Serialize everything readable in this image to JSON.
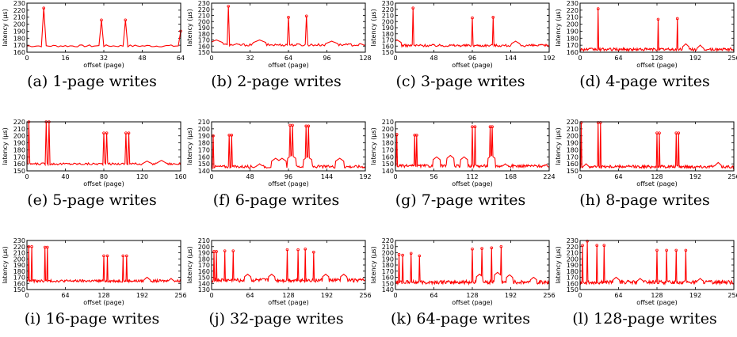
{
  "chart_data": [
    {
      "type": "line",
      "caption": "(a) 1-page writes",
      "xlabel": "offset (page)",
      "ylabel": "latency (µs)",
      "xlim": [
        0,
        64
      ],
      "xticks": [
        0,
        16,
        32,
        48,
        64
      ],
      "ylim": [
        160,
        230
      ],
      "yticks": [
        160,
        170,
        180,
        190,
        200,
        210,
        220,
        230
      ],
      "color": "#ff0000",
      "base": 169,
      "noise": 1.5,
      "n": 64,
      "bumps": [
        [
          4,
          162
        ],
        [
          10,
          168
        ],
        [
          20,
          164
        ],
        [
          58,
          165
        ]
      ],
      "spikes": [
        [
          7,
          223
        ],
        [
          31,
          206
        ],
        [
          41,
          206
        ],
        [
          64,
          190
        ]
      ]
    },
    {
      "type": "line",
      "caption": "(b) 2-page writes",
      "xlabel": "offset (page)",
      "ylabel": "latency (µs)",
      "xlim": [
        0,
        128
      ],
      "xticks": [
        0,
        32,
        64,
        96,
        128
      ],
      "ylim": [
        150,
        230
      ],
      "yticks": [
        150,
        160,
        170,
        180,
        190,
        200,
        210,
        220,
        230
      ],
      "color": "#ff0000",
      "base": 162,
      "noise": 2,
      "n": 128,
      "bumps": [
        [
          4,
          170
        ],
        [
          40,
          170
        ],
        [
          100,
          168
        ]
      ],
      "spikes": [
        [
          14,
          225
        ],
        [
          64,
          207
        ],
        [
          79,
          209
        ]
      ]
    },
    {
      "type": "line",
      "caption": "(c) 3-page writes",
      "xlabel": "offset (page)",
      "ylabel": "latency (µs)",
      "xlim": [
        0,
        192
      ],
      "xticks": [
        0,
        48,
        96,
        144,
        192
      ],
      "ylim": [
        150,
        230
      ],
      "yticks": [
        150,
        160,
        170,
        180,
        190,
        200,
        210,
        220,
        230
      ],
      "color": "#ff0000",
      "base": 161,
      "noise": 2,
      "n": 192,
      "bumps": [
        [
          2,
          170
        ],
        [
          150,
          168
        ]
      ],
      "spikes": [
        [
          22,
          222
        ],
        [
          96,
          206
        ],
        [
          122,
          207
        ]
      ]
    },
    {
      "type": "line",
      "caption": "(d) 4-page writes",
      "xlabel": "offset (page)",
      "ylabel": "latency (µs)",
      "xlim": [
        0,
        256
      ],
      "xticks": [
        0,
        64,
        128,
        192,
        256
      ],
      "ylim": [
        160,
        230
      ],
      "yticks": [
        160,
        170,
        180,
        190,
        200,
        210,
        220,
        230
      ],
      "color": "#ff0000",
      "base": 164,
      "noise": 2,
      "n": 256,
      "bumps": [
        [
          176,
          172
        ],
        [
          200,
          170
        ]
      ],
      "spikes": [
        [
          30,
          222
        ],
        [
          130,
          207
        ],
        [
          162,
          208
        ]
      ]
    },
    {
      "type": "line",
      "caption": "(e) 5-page writes",
      "xlabel": "offset (page)",
      "ylabel": "latency (µs)",
      "xlim": [
        0,
        160
      ],
      "xticks": [
        0,
        40,
        80,
        120,
        160
      ],
      "ylim": [
        150,
        220
      ],
      "yticks": [
        150,
        160,
        170,
        180,
        190,
        200,
        210,
        220
      ],
      "color": "#ff0000",
      "base": 160,
      "noise": 1.5,
      "n": 160,
      "bumps": [
        [
          125,
          164
        ],
        [
          140,
          165
        ]
      ],
      "spikes": [
        [
          2,
          220
        ],
        [
          20,
          220
        ],
        [
          23,
          220
        ],
        [
          80,
          204
        ],
        [
          83,
          204
        ],
        [
          103,
          204
        ],
        [
          106,
          204
        ]
      ]
    },
    {
      "type": "line",
      "caption": "(f) 6-page writes",
      "xlabel": "offset (page)",
      "ylabel": "latency (µs)",
      "xlim": [
        0,
        192
      ],
      "xticks": [
        0,
        48,
        96,
        144,
        192
      ],
      "ylim": [
        140,
        210
      ],
      "yticks": [
        140,
        150,
        160,
        170,
        180,
        190,
        200,
        210
      ],
      "color": "#ff0000",
      "base": 146,
      "noise": 2,
      "n": 192,
      "bumps": [
        [
          60,
          150
        ],
        [
          80,
          158
        ],
        [
          88,
          158
        ],
        [
          100,
          162
        ],
        [
          120,
          160
        ],
        [
          160,
          158
        ]
      ],
      "spikes": [
        [
          2,
          190
        ],
        [
          22,
          191
        ],
        [
          25,
          191
        ],
        [
          98,
          205
        ],
        [
          101,
          205
        ],
        [
          118,
          204
        ],
        [
          121,
          204
        ]
      ]
    },
    {
      "type": "line",
      "caption": "(g) 7-page writes",
      "xlabel": "offset (page)",
      "ylabel": "latency (µs)",
      "xlim": [
        0,
        224
      ],
      "xticks": [
        0,
        56,
        112,
        168,
        224
      ],
      "ylim": [
        140,
        210
      ],
      "yticks": [
        140,
        150,
        160,
        170,
        180,
        190,
        200,
        210
      ],
      "color": "#ff0000",
      "base": 147,
      "noise": 2,
      "n": 224,
      "bumps": [
        [
          60,
          160
        ],
        [
          80,
          162
        ],
        [
          100,
          160
        ],
        [
          140,
          162
        ],
        [
          160,
          150
        ]
      ],
      "spikes": [
        [
          2,
          192
        ],
        [
          28,
          191
        ],
        [
          31,
          191
        ],
        [
          112,
          203
        ],
        [
          116,
          203
        ],
        [
          138,
          203
        ],
        [
          141,
          203
        ]
      ]
    },
    {
      "type": "line",
      "caption": "(h) 8-page writes",
      "xlabel": "offset (page)",
      "ylabel": "latency (µs)",
      "xlim": [
        0,
        256
      ],
      "xticks": [
        0,
        64,
        128,
        192,
        256
      ],
      "ylim": [
        150,
        220
      ],
      "yticks": [
        150,
        160,
        170,
        180,
        190,
        200,
        210,
        220
      ],
      "color": "#ff0000",
      "base": 156,
      "noise": 2,
      "n": 256,
      "bumps": [
        [
          10,
          160
        ],
        [
          230,
          162
        ]
      ],
      "spikes": [
        [
          2,
          219
        ],
        [
          30,
          219
        ],
        [
          34,
          219
        ],
        [
          128,
          204
        ],
        [
          132,
          204
        ],
        [
          160,
          204
        ],
        [
          164,
          204
        ]
      ]
    },
    {
      "type": "line",
      "caption": "(i) 16-page writes",
      "xlabel": "offset (page)",
      "ylabel": "latency (µs)",
      "xlim": [
        0,
        256
      ],
      "xticks": [
        0,
        64,
        128,
        192,
        256
      ],
      "ylim": [
        150,
        230
      ],
      "yticks": [
        150,
        160,
        170,
        180,
        190,
        200,
        210,
        220,
        230
      ],
      "color": "#ff0000",
      "base": 164,
      "noise": 2,
      "n": 256,
      "bumps": [
        [
          200,
          170
        ],
        [
          240,
          168
        ]
      ],
      "spikes": [
        [
          3,
          220
        ],
        [
          8,
          220
        ],
        [
          30,
          219
        ],
        [
          34,
          219
        ],
        [
          128,
          205
        ],
        [
          134,
          205
        ],
        [
          160,
          205
        ],
        [
          166,
          205
        ]
      ]
    },
    {
      "type": "line",
      "caption": "(j) 32-page writes",
      "xlabel": "offset (page)",
      "ylabel": "latency (µs)",
      "xlim": [
        0,
        256
      ],
      "xticks": [
        0,
        64,
        128,
        192,
        256
      ],
      "ylim": [
        130,
        210
      ],
      "yticks": [
        130,
        140,
        150,
        160,
        170,
        180,
        190,
        200,
        210
      ],
      "color": "#ff0000",
      "base": 145,
      "noise": 3,
      "n": 256,
      "bumps": [
        [
          60,
          155
        ],
        [
          100,
          155
        ],
        [
          190,
          155
        ],
        [
          220,
          155
        ]
      ],
      "spikes": [
        [
          4,
          192
        ],
        [
          8,
          192
        ],
        [
          22,
          193
        ],
        [
          36,
          193
        ],
        [
          126,
          195
        ],
        [
          144,
          195
        ],
        [
          156,
          196
        ],
        [
          170,
          191
        ]
      ]
    },
    {
      "type": "line",
      "caption": "(k) 64-page writes",
      "xlabel": "offset (page)",
      "ylabel": "latency (µs)",
      "xlim": [
        0,
        256
      ],
      "xticks": [
        0,
        64,
        128,
        192,
        256
      ],
      "ylim": [
        140,
        220
      ],
      "yticks": [
        140,
        150,
        160,
        170,
        180,
        190,
        200,
        210,
        220
      ],
      "color": "#ff0000",
      "base": 152,
      "noise": 3,
      "n": 256,
      "bumps": [
        [
          140,
          165
        ],
        [
          170,
          168
        ],
        [
          190,
          164
        ],
        [
          230,
          160
        ]
      ],
      "spikes": [
        [
          6,
          197
        ],
        [
          12,
          196
        ],
        [
          26,
          199
        ],
        [
          40,
          195
        ],
        [
          128,
          206
        ],
        [
          144,
          207
        ],
        [
          160,
          208
        ],
        [
          176,
          210
        ]
      ]
    },
    {
      "type": "line",
      "caption": "(l) 128-page writes",
      "xlabel": "offset (page)",
      "ylabel": "latency (µs)",
      "xlim": [
        0,
        256
      ],
      "xticks": [
        0,
        64,
        128,
        192,
        256
      ],
      "ylim": [
        150,
        230
      ],
      "yticks": [
        150,
        160,
        170,
        180,
        190,
        200,
        210,
        220,
        230
      ],
      "color": "#ff0000",
      "base": 162,
      "noise": 3,
      "n": 256,
      "bumps": [
        [
          60,
          170
        ],
        [
          100,
          168
        ],
        [
          200,
          168
        ]
      ],
      "spikes": [
        [
          4,
          222
        ],
        [
          12,
          229
        ],
        [
          28,
          222
        ],
        [
          40,
          222
        ],
        [
          128,
          214
        ],
        [
          144,
          214
        ],
        [
          160,
          214
        ],
        [
          176,
          214
        ]
      ]
    }
  ]
}
